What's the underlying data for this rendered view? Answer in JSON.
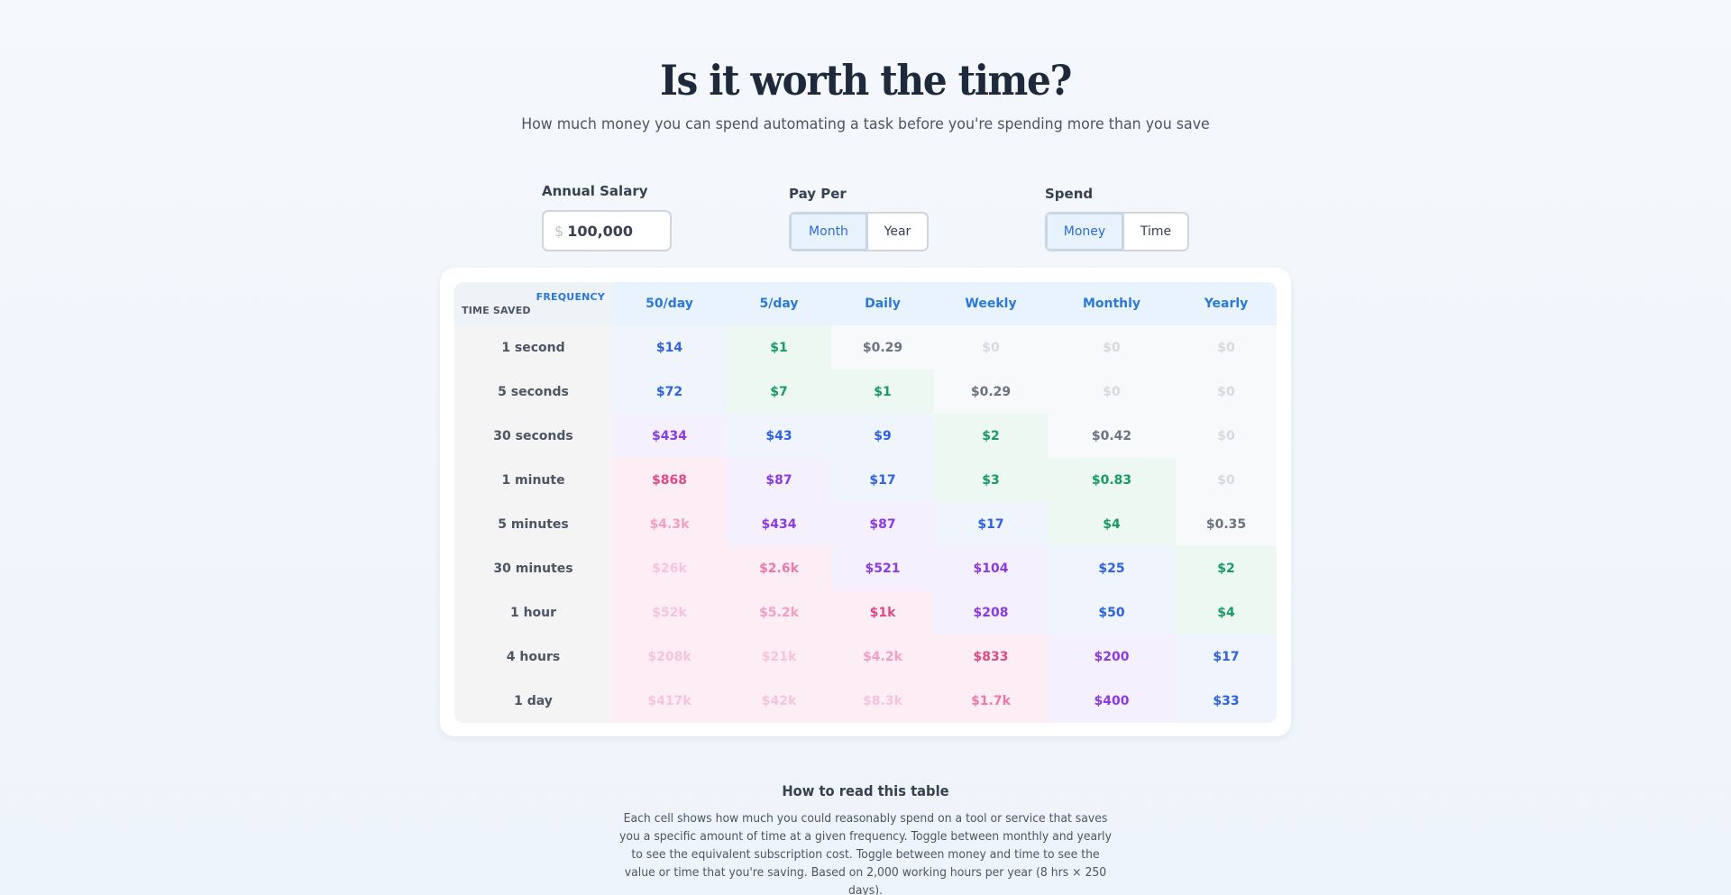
{
  "header": {
    "title": "Is it worth the time?",
    "subtitle": "How much money you can spend automating a task before you're spending more than you save"
  },
  "controls": {
    "salary": {
      "label": "Annual Salary",
      "currency_symbol": "$",
      "value": "100,000"
    },
    "pay_per": {
      "label": "Pay Per",
      "options": [
        "Month",
        "Year"
      ],
      "selected": "Month"
    },
    "spend": {
      "label": "Spend",
      "options": [
        "Money",
        "Time"
      ],
      "selected": "Money"
    }
  },
  "table": {
    "corner": {
      "frequency_label": "FREQUENCY",
      "time_saved_label": "TIME SAVED"
    },
    "columns": [
      "50/day",
      "5/day",
      "Daily",
      "Weekly",
      "Monthly",
      "Yearly"
    ],
    "rows": [
      {
        "label": "1 second",
        "values": [
          "$14",
          "$1",
          "$0.29",
          "$0",
          "$0",
          "$0"
        ]
      },
      {
        "label": "5 seconds",
        "values": [
          "$72",
          "$7",
          "$1",
          "$0.29",
          "$0",
          "$0"
        ]
      },
      {
        "label": "30 seconds",
        "values": [
          "$434",
          "$43",
          "$9",
          "$2",
          "$0.42",
          "$0"
        ]
      },
      {
        "label": "1 minute",
        "values": [
          "$868",
          "$87",
          "$17",
          "$3",
          "$0.83",
          "$0"
        ]
      },
      {
        "label": "5 minutes",
        "values": [
          "$4.3k",
          "$434",
          "$87",
          "$17",
          "$4",
          "$0.35"
        ]
      },
      {
        "label": "30 minutes",
        "values": [
          "$26k",
          "$2.6k",
          "$521",
          "$104",
          "$25",
          "$2"
        ]
      },
      {
        "label": "1 hour",
        "values": [
          "$52k",
          "$5.2k",
          "$1k",
          "$208",
          "$50",
          "$4"
        ]
      },
      {
        "label": "4 hours",
        "values": [
          "$208k",
          "$21k",
          "$4.2k",
          "$833",
          "$200",
          "$17"
        ]
      },
      {
        "label": "1 day",
        "values": [
          "$417k",
          "$42k",
          "$8.3k",
          "$1.7k",
          "$400",
          "$33"
        ]
      }
    ],
    "tiers": [
      [
        "blue",
        "green",
        "gray",
        "zero",
        "zero",
        "zero"
      ],
      [
        "blue",
        "green",
        "green",
        "gray",
        "zero",
        "zero"
      ],
      [
        "purple",
        "blue",
        "blue",
        "green",
        "gray",
        "zero"
      ],
      [
        "pink",
        "purple",
        "blue",
        "green",
        "green",
        "zero"
      ],
      [
        "pinkfade",
        "purple",
        "purple",
        "blue",
        "green",
        "gray"
      ],
      [
        "pinkfaint",
        "pinkmid",
        "purple",
        "purple",
        "blue",
        "green"
      ],
      [
        "pinkfaint",
        "pinkfade",
        "pink",
        "purple",
        "blue",
        "green"
      ],
      [
        "pinkfaint",
        "pinkfaint",
        "pinkfade",
        "pink",
        "purple",
        "blue"
      ],
      [
        "pinkfaint",
        "pinkfaint",
        "pinkfaint",
        "pinkmid",
        "purple",
        "blue"
      ]
    ],
    "tier_styles": {
      "zero": {
        "bg": "#f7f9fa",
        "fg": "#d6dae0"
      },
      "gray": {
        "bg": "#f7f9fa",
        "fg": "#6b7280"
      },
      "green": {
        "bg": "#eef8f3",
        "fg": "#179a63"
      },
      "blue": {
        "bg": "#eff4fd",
        "fg": "#2f62e0"
      },
      "purple": {
        "bg": "#f4f0fd",
        "fg": "#8b3be0"
      },
      "pink": {
        "bg": "#fdeef5",
        "fg": "#de4a86"
      },
      "pinkmid": {
        "bg": "#fdeef5",
        "fg": "#ea7aaa"
      },
      "pinkfade": {
        "bg": "#fdeef5",
        "fg": "#f0a0c2"
      },
      "pinkfaint": {
        "bg": "#fdeef5",
        "fg": "#f6c4da"
      }
    }
  },
  "howto": {
    "title": "How to read this table",
    "text": "Each cell shows how much you could reasonably spend on a tool or service that saves you a specific amount of time at a given frequency. Toggle between monthly and yearly to see the equivalent subscription cost. Toggle between money and time to see the value or time that you're saving. Based on 2,000 working hours per year (8 hrs × 250 days)."
  }
}
